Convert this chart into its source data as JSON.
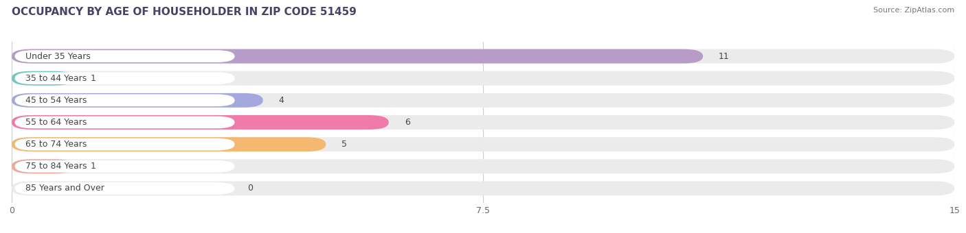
{
  "title": "OCCUPANCY BY AGE OF HOUSEHOLDER IN ZIP CODE 51459",
  "source": "Source: ZipAtlas.com",
  "categories": [
    "Under 35 Years",
    "35 to 44 Years",
    "45 to 54 Years",
    "55 to 64 Years",
    "65 to 74 Years",
    "75 to 84 Years",
    "85 Years and Over"
  ],
  "values": [
    11,
    1,
    4,
    6,
    5,
    1,
    0
  ],
  "bar_colors": [
    "#b89cc8",
    "#72c8c4",
    "#a4a8dc",
    "#f07aaa",
    "#f5b870",
    "#f0a898",
    "#98b8e8"
  ],
  "xlim": [
    0,
    15
  ],
  "xticks": [
    0,
    7.5,
    15
  ],
  "bar_background_color": "#ebebeb",
  "title_fontsize": 11,
  "label_fontsize": 9,
  "value_fontsize": 9,
  "bar_height": 0.65,
  "rounding_size": 0.32
}
